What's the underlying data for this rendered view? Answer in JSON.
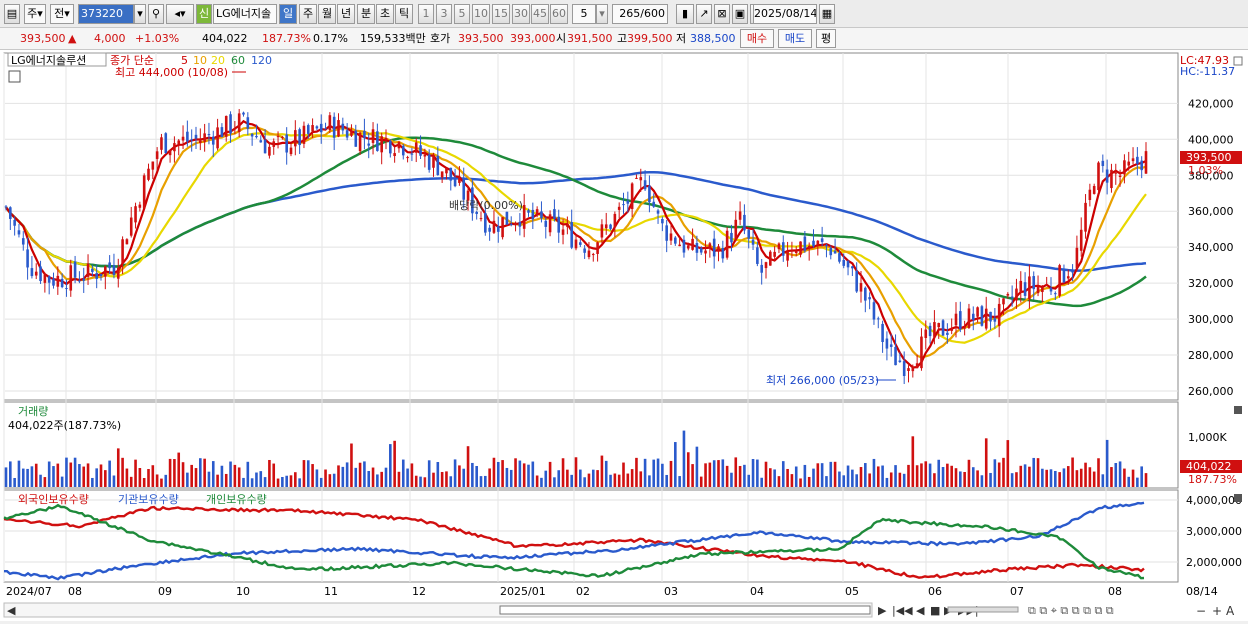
{
  "toolbar": {
    "period": "주",
    "prev": "전",
    "code": "373220",
    "name": "LG에너지솔",
    "tag": "신",
    "tabs": [
      "일",
      "주",
      "월",
      "년",
      "분",
      "초",
      "틱"
    ],
    "intervals": [
      "1",
      "3",
      "5",
      "10",
      "15",
      "30",
      "45",
      "60"
    ],
    "interval_custom": "5",
    "range": "265/600",
    "date": "2025/08/14"
  },
  "quote": {
    "price": "393,500",
    "change": "4,000",
    "pct": "+1.03%",
    "volume": "404,022",
    "vol_ratio": "187.73%",
    "turnover": "0.17%",
    "amount": "159,533백만",
    "bid_label": "호가",
    "bid": "393,500",
    "ask": "393,000",
    "open_label": "시",
    "open": "391,500",
    "high_label": "고",
    "high": "399,500",
    "low_label": "저",
    "low": "388,500",
    "buy": "매수",
    "sell": "매도",
    "eval": "평"
  },
  "price_panel": {
    "title": "LG에너지솔루션",
    "legend_prefix": "종가 단순",
    "ma": [
      {
        "p": "5",
        "color": "#cc0000"
      },
      {
        "p": "10",
        "color": "#e8a000"
      },
      {
        "p": "20",
        "color": "#e8d800"
      },
      {
        "p": "60",
        "color": "#1e8a3a"
      },
      {
        "p": "120",
        "color": "#2a5acc"
      }
    ],
    "lc": "LC:47.93",
    "hc": "HC:-11.37",
    "max_label": "최고 444,000 (10/08)",
    "min_label": "최저 266,000 (05/23)",
    "ex_label": "배당락(0.00%)",
    "last_price": "393,500",
    "last_pct": "1.03%",
    "yticks": [
      "420,000",
      "400,000",
      "380,000",
      "360,000",
      "340,000",
      "320,000",
      "300,000",
      "280,000",
      "260,000"
    ]
  },
  "volume_panel": {
    "title": "거래량",
    "value": "404,022주(187.73%)",
    "ytick": "1,000K",
    "last": "404,022",
    "last_pct": "187.73%"
  },
  "holding_panel": {
    "legend": [
      "외국인보유수량",
      "기관보유수량",
      "개인보유수량"
    ],
    "yticks": [
      "4,000,000",
      "3,000,000",
      "2,000,000"
    ]
  },
  "xaxis": [
    "2024/07",
    "08",
    "09",
    "10",
    "11",
    "12",
    "2025/01",
    "02",
    "03",
    "04",
    "05",
    "06",
    "07",
    "08",
    "08/14"
  ],
  "chart_data": {
    "type": "candlestick",
    "price_range": [
      255000,
      448000
    ],
    "high": 444000,
    "low": 266000,
    "last": 393500
  }
}
